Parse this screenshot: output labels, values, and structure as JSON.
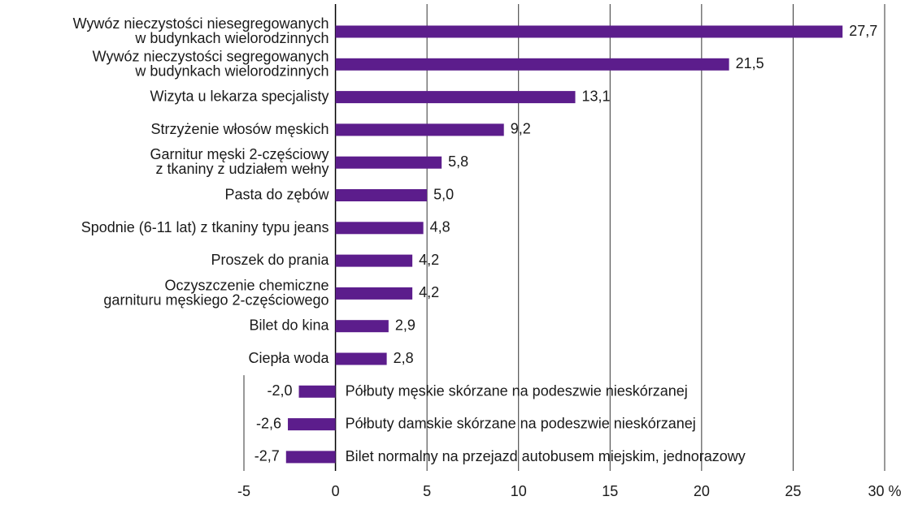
{
  "chart_data": {
    "type": "bar",
    "orientation": "horizontal",
    "categories": [
      "Wywóz nieczystości niesegregowanych\nw budynkach wielorodzinnych",
      "Wywóz nieczystości segregowanych\nw budynkach wielorodzinnych",
      "Wizyta u lekarza specjalisty",
      "Strzyżenie włosów męskich",
      "Garnitur męski 2-częściowy\nz tkaniny z udziałem wełny",
      "Pasta do zębów",
      "Spodnie (6-11 lat) z tkaniny typu jeans",
      "Proszek do prania",
      "Oczyszczenie chemiczne\ngarnituru męskiego 2-częściowego",
      "Bilet do kina",
      "Ciepła woda",
      "Półbuty męskie skórzane na podeszwie nieskórzanej",
      "Półbuty damskie skórzane na podeszwie nieskórzanej",
      "Bilet normalny na przejazd autobusem miejskim, jednorazowy"
    ],
    "values": [
      27.7,
      21.5,
      13.1,
      9.2,
      5.8,
      5.0,
      4.8,
      4.2,
      4.2,
      2.9,
      2.8,
      -2.0,
      -2.6,
      -2.7
    ],
    "value_labels": [
      "27,7",
      "21,5",
      "13,1",
      "9,2",
      "5,8",
      "5,0",
      "4,8",
      "4,2",
      "4,2",
      "2,9",
      "2,8",
      "-2,0",
      "-2,6",
      "-2,7"
    ],
    "color": "#5c1d8c",
    "xlim": [
      -5,
      30
    ],
    "xticks": [
      -5,
      0,
      5,
      10,
      15,
      20,
      25,
      {
        "value": 30,
        "label": "30 %"
      }
    ],
    "grid": true
  }
}
